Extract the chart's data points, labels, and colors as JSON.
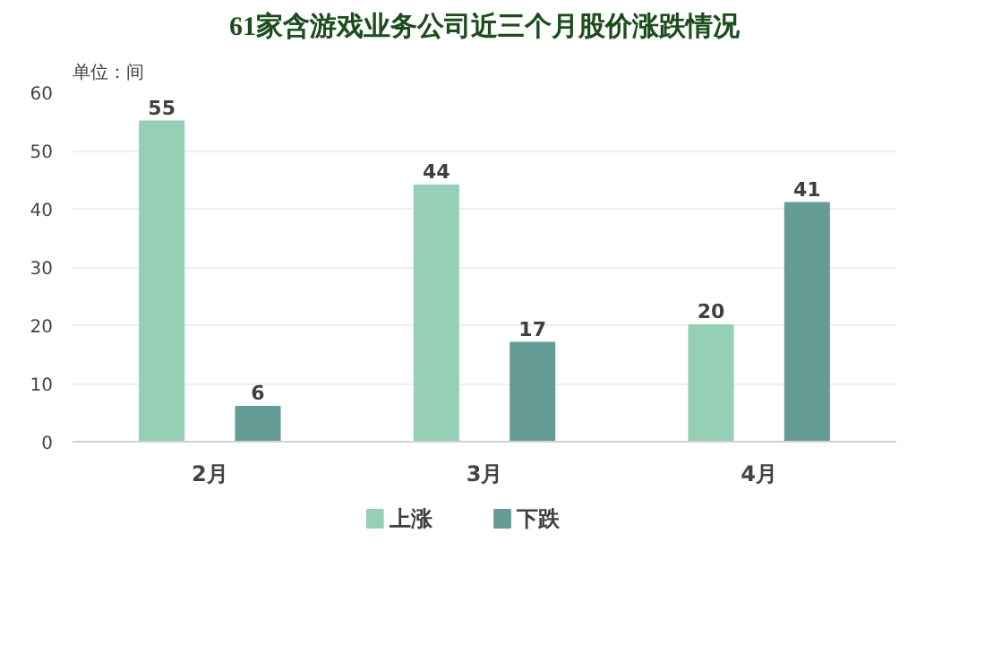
{
  "chart_data": {
    "type": "bar",
    "title": "61家含游戏业务公司近三个月股价涨跌情况",
    "annotations": [
      "单位：间"
    ],
    "categories": [
      "2月",
      "3月",
      "4月"
    ],
    "series": [
      {
        "name": "上涨",
        "color": "#95d0b6",
        "values": [
          55,
          44,
          20
        ]
      },
      {
        "name": "下跌",
        "color": "#669c96",
        "values": [
          6,
          17,
          41
        ]
      }
    ],
    "ylim": [
      0,
      60
    ],
    "yticks": [
      0,
      10,
      20,
      30,
      40,
      50,
      60
    ],
    "grid": "y",
    "legend": "bottom",
    "data_labels": true
  }
}
